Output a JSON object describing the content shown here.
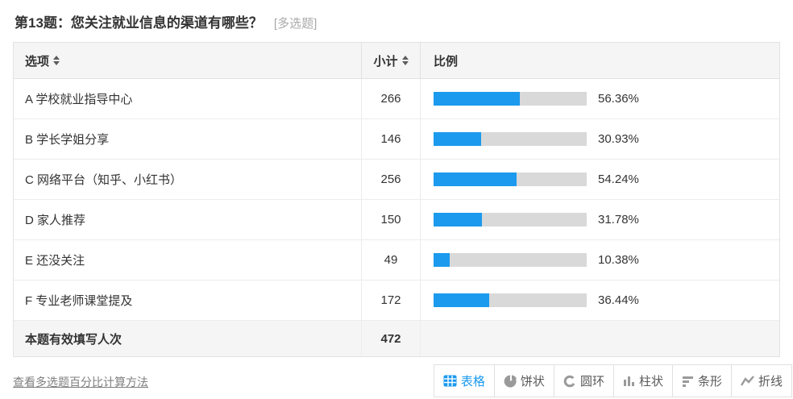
{
  "question": {
    "title": "第13题：您关注就业信息的渠道有哪些？",
    "type_tag": "[多选题]"
  },
  "table": {
    "header": {
      "option": "选项",
      "count": "小计",
      "ratio": "比例"
    },
    "rows": [
      {
        "option": "A 学校就业指导中心",
        "count": "266",
        "percent": "56.36%",
        "value": 56.36
      },
      {
        "option": "B 学长学姐分享",
        "count": "146",
        "percent": "30.93%",
        "value": 30.93
      },
      {
        "option": "C 网络平台（知乎、小红书）",
        "count": "256",
        "percent": "54.24%",
        "value": 54.24
      },
      {
        "option": "D 家人推荐",
        "count": "150",
        "percent": "31.78%",
        "value": 31.78
      },
      {
        "option": "E 还没关注",
        "count": "49",
        "percent": "10.38%",
        "value": 10.38
      },
      {
        "option": "F 专业老师课堂提及",
        "count": "172",
        "percent": "36.44%",
        "value": 36.44
      }
    ],
    "summary": {
      "label": "本题有效填写人次",
      "count": "472"
    }
  },
  "footer": {
    "method_link": "查看多选题百分比计算方法"
  },
  "toolbar": {
    "views": [
      {
        "label": "表格",
        "icon": "table-icon",
        "active": true
      },
      {
        "label": "饼状",
        "icon": "pie-icon",
        "active": false
      },
      {
        "label": "圆环",
        "icon": "donut-icon",
        "active": false
      },
      {
        "label": "柱状",
        "icon": "column-icon",
        "active": false
      },
      {
        "label": "条形",
        "icon": "hbar-icon",
        "active": false
      },
      {
        "label": "折线",
        "icon": "line-icon",
        "active": false
      }
    ]
  },
  "colors": {
    "accent": "#1b9aee",
    "bar_track": "#d9d9d9",
    "icon_gray": "#9a9a9a"
  },
  "chart_data": {
    "type": "bar",
    "orientation": "horizontal",
    "title": "第13题：您关注就业信息的渠道有哪些？",
    "categories": [
      "A 学校就业指导中心",
      "B 学长学姐分享",
      "C 网络平台（知乎、小红书）",
      "D 家人推荐",
      "E 还没关注",
      "F 专业老师课堂提及"
    ],
    "series": [
      {
        "name": "小计",
        "values": [
          266,
          146,
          256,
          150,
          49,
          172
        ]
      },
      {
        "name": "比例(%)",
        "values": [
          56.36,
          30.93,
          54.24,
          31.78,
          10.38,
          36.44
        ]
      }
    ],
    "valid_responses": 472,
    "xlim": [
      0,
      100
    ]
  }
}
